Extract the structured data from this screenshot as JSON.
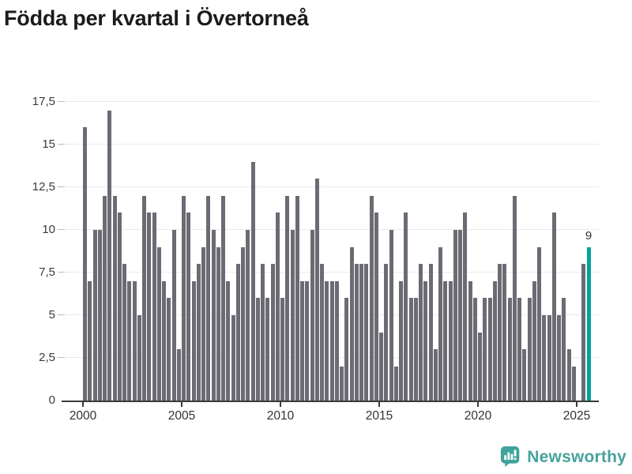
{
  "title": "Födda per kvartal i Övertorneå",
  "annotation": {
    "label": "9"
  },
  "logo": {
    "text": "Newsworthy"
  },
  "colors": {
    "title": "#1b1b1b",
    "bar": "#6b6b74",
    "accent": "#00a49c",
    "grid": "#eaeaed",
    "axis": "#3a3a3c",
    "tick_text": "#333333",
    "logo": "#47a39d"
  },
  "chart_data": {
    "type": "bar",
    "title": "Födda per kvartal i Övertorneå",
    "xlabel": "",
    "ylabel": "",
    "x_start": "2000-Q1",
    "x_end": "2025-Q3",
    "x_tick_labels": [
      "2000",
      "2005",
      "2010",
      "2015",
      "2020",
      "2025"
    ],
    "y_tick_labels": [
      "0",
      "2,5",
      "5",
      "7,5",
      "10",
      "12,5",
      "15",
      "17,5"
    ],
    "y_tick_values": [
      0,
      2.5,
      5,
      7.5,
      10,
      12.5,
      15,
      17.5
    ],
    "ylim": [
      0,
      17.5
    ],
    "grid": true,
    "legend_position": "none",
    "series": [
      {
        "name": "Födda per kvartal",
        "values": [
          16,
          7,
          10,
          10,
          12,
          17,
          12,
          11,
          8,
          7,
          7,
          5,
          12,
          11,
          11,
          9,
          7,
          6,
          10,
          3,
          12,
          11,
          7,
          8,
          9,
          12,
          10,
          9,
          12,
          7,
          5,
          8,
          9,
          10,
          14,
          6,
          8,
          6,
          8,
          11,
          6,
          12,
          10,
          12,
          7,
          7,
          10,
          13,
          8,
          7,
          7,
          7,
          2,
          6,
          9,
          8,
          8,
          8,
          12,
          11,
          4,
          8,
          10,
          2,
          7,
          11,
          6,
          6,
          8,
          7,
          8,
          3,
          9,
          7,
          7,
          10,
          10,
          11,
          7,
          6,
          4,
          6,
          6,
          7,
          8,
          8,
          6,
          12,
          6,
          3,
          6,
          7,
          9,
          5,
          5,
          11,
          5,
          6,
          3,
          2,
          0,
          8,
          9
        ]
      }
    ],
    "highlight": {
      "index": 102,
      "quarter": "2025-Q3",
      "value": 9,
      "label": "9"
    }
  }
}
